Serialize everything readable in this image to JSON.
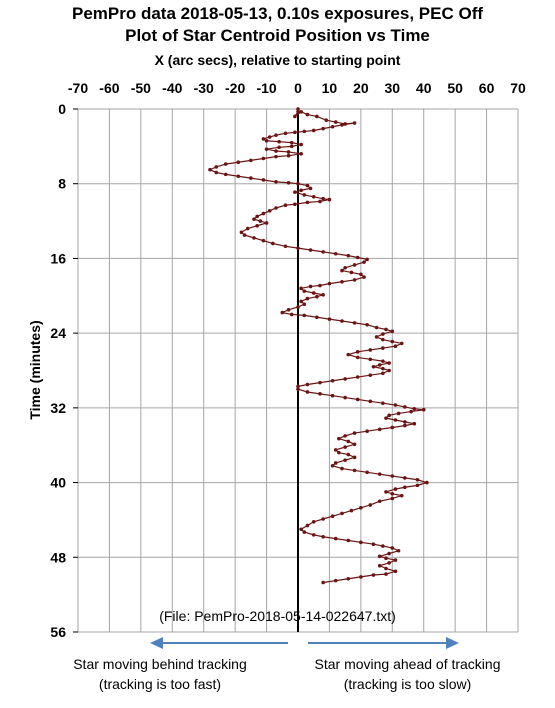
{
  "chart_data": {
    "type": "scatter",
    "title": "PemPro data 2018-05-13, 0.10s exposures, PEC Off",
    "subtitle": "Plot of Star Centroid Position vs Time",
    "xlabel": "X  (arc secs), relative to starting point",
    "ylabel": "Time (minutes)",
    "xlim": [
      -70,
      70
    ],
    "ylim": [
      0,
      56
    ],
    "y_inverted": true,
    "x_ticks": [
      "-70",
      "-60",
      "-50",
      "-40",
      "-30",
      "-20",
      "-10",
      "0",
      "10",
      "20",
      "30",
      "40",
      "50",
      "60",
      "70"
    ],
    "y_ticks": [
      "0",
      "8",
      "16",
      "24",
      "32",
      "40",
      "48",
      "56"
    ],
    "grid": "vertical lines every 10 arc secs, horizontal lines every 8 minutes",
    "series": [
      {
        "color": "#6b1414",
        "points": [
          [
            0,
            0
          ],
          [
            0,
            0.3
          ],
          [
            -1,
            0.8
          ],
          [
            1,
            0.3
          ],
          [
            3,
            0.6
          ],
          [
            6,
            0.8
          ],
          [
            9,
            1.2
          ],
          [
            12,
            1.4
          ],
          [
            15,
            1.6
          ],
          [
            18,
            1.5
          ],
          [
            14,
            1.7
          ],
          [
            11,
            1.9
          ],
          [
            8,
            2.1
          ],
          [
            5,
            2.3
          ],
          [
            2,
            2.4
          ],
          [
            -1,
            2.5
          ],
          [
            -4,
            2.6
          ],
          [
            -7,
            2.8
          ],
          [
            -9,
            3
          ],
          [
            -11,
            3.2
          ],
          [
            -10,
            3.4
          ],
          [
            -6,
            3.5
          ],
          [
            -2,
            3.6
          ],
          [
            1,
            3.8
          ],
          [
            -2,
            4
          ],
          [
            -6,
            4.1
          ],
          [
            -10,
            4.3
          ],
          [
            -7,
            4.5
          ],
          [
            -3,
            4.6
          ],
          [
            1,
            4.8
          ],
          [
            -3,
            5
          ],
          [
            -7,
            5.1
          ],
          [
            -11,
            5.3
          ],
          [
            -15,
            5.5
          ],
          [
            -19,
            5.7
          ],
          [
            -23,
            5.9
          ],
          [
            -26,
            6.2
          ],
          [
            -28,
            6.5
          ],
          [
            -26,
            6.8
          ],
          [
            -23,
            7
          ],
          [
            -19,
            7.2
          ],
          [
            -15,
            7.4
          ],
          [
            -11,
            7.6
          ],
          [
            -7,
            7.8
          ],
          [
            -3,
            7.9
          ],
          [
            0,
            8
          ],
          [
            3,
            8.2
          ],
          [
            4,
            8.5
          ],
          [
            1,
            8.7
          ],
          [
            -1,
            8.9
          ],
          [
            2,
            9.2
          ],
          [
            5,
            9.4
          ],
          [
            8,
            9.6
          ],
          [
            10,
            9.7
          ],
          [
            7,
            9.9
          ],
          [
            3,
            10
          ],
          [
            -1,
            10.2
          ],
          [
            -4,
            10.3
          ],
          [
            -7,
            10.6
          ],
          [
            -9,
            10.9
          ],
          [
            -11,
            11.2
          ],
          [
            -13,
            11.5
          ],
          [
            -14,
            11.8
          ],
          [
            -12,
            12
          ],
          [
            -10,
            12.2
          ],
          [
            -13,
            12.5
          ],
          [
            -16,
            12.8
          ],
          [
            -18,
            13.2
          ],
          [
            -17,
            13.5
          ],
          [
            -14,
            13.8
          ],
          [
            -11,
            14.1
          ],
          [
            -8,
            14.4
          ],
          [
            -4,
            14.7
          ],
          [
            0,
            14.9
          ],
          [
            4,
            15.1
          ],
          [
            8,
            15.3
          ],
          [
            12,
            15.5
          ],
          [
            16,
            15.7
          ],
          [
            19,
            15.9
          ],
          [
            22,
            16.1
          ],
          [
            21,
            16.4
          ],
          [
            18,
            16.7
          ],
          [
            15,
            17
          ],
          [
            14,
            17.3
          ],
          [
            17,
            17.5
          ],
          [
            20,
            17.7
          ],
          [
            21,
            18
          ],
          [
            18,
            18.3
          ],
          [
            14,
            18.5
          ],
          [
            10,
            18.7
          ],
          [
            7,
            18.9
          ],
          [
            4,
            19
          ],
          [
            1,
            19.2
          ],
          [
            2,
            19.5
          ],
          [
            5,
            19.7
          ],
          [
            8,
            19.9
          ],
          [
            6,
            20.1
          ],
          [
            3,
            20.3
          ],
          [
            1,
            20.6
          ],
          [
            2,
            20.9
          ],
          [
            0,
            21.2
          ],
          [
            -3,
            21.5
          ],
          [
            -5,
            21.8
          ],
          [
            -2,
            22
          ],
          [
            2,
            22.1
          ],
          [
            6,
            22.3
          ],
          [
            10,
            22.5
          ],
          [
            14,
            22.7
          ],
          [
            18,
            22.9
          ],
          [
            22,
            23.1
          ],
          [
            25,
            23.4
          ],
          [
            28,
            23.6
          ],
          [
            30,
            23.8
          ],
          [
            27,
            24.1
          ],
          [
            25,
            24.4
          ],
          [
            27,
            24.7
          ],
          [
            30,
            24.9
          ],
          [
            33,
            25.1
          ],
          [
            31,
            25.4
          ],
          [
            27,
            25.6
          ],
          [
            23,
            25.8
          ],
          [
            19,
            26
          ],
          [
            16,
            26.3
          ],
          [
            19,
            26.6
          ],
          [
            23,
            26.8
          ],
          [
            27,
            27
          ],
          [
            29,
            27.2
          ],
          [
            26,
            27.4
          ],
          [
            24,
            27.6
          ],
          [
            27,
            27.8
          ],
          [
            29,
            28
          ],
          [
            27,
            28.3
          ],
          [
            23,
            28.5
          ],
          [
            19,
            28.7
          ],
          [
            15,
            28.9
          ],
          [
            11,
            29.1
          ],
          [
            7,
            29.3
          ],
          [
            3,
            29.5
          ],
          [
            0,
            29.7
          ],
          [
            0,
            30
          ],
          [
            3,
            30.3
          ],
          [
            7,
            30.5
          ],
          [
            11,
            30.7
          ],
          [
            15,
            30.9
          ],
          [
            19,
            31.1
          ],
          [
            23,
            31.3
          ],
          [
            27,
            31.5
          ],
          [
            31,
            31.7
          ],
          [
            34,
            31.9
          ],
          [
            37,
            32.1
          ],
          [
            40,
            32.2
          ],
          [
            36,
            32.4
          ],
          [
            32,
            32.6
          ],
          [
            29,
            32.8
          ],
          [
            28,
            33.1
          ],
          [
            31,
            33.3
          ],
          [
            34,
            33.5
          ],
          [
            37,
            33.7
          ],
          [
            34,
            33.9
          ],
          [
            30,
            34.1
          ],
          [
            26,
            34.3
          ],
          [
            22,
            34.5
          ],
          [
            18,
            34.7
          ],
          [
            15,
            35
          ],
          [
            13,
            35.3
          ],
          [
            16,
            35.6
          ],
          [
            18,
            35.9
          ],
          [
            15,
            36.2
          ],
          [
            12,
            36.5
          ],
          [
            13,
            36.8
          ],
          [
            16,
            37
          ],
          [
            18,
            37.3
          ],
          [
            15,
            37.6
          ],
          [
            12,
            37.9
          ],
          [
            11,
            38.2
          ],
          [
            14,
            38.5
          ],
          [
            18,
            38.7
          ],
          [
            22,
            38.9
          ],
          [
            26,
            39.1
          ],
          [
            30,
            39.3
          ],
          [
            34,
            39.5
          ],
          [
            38,
            39.7
          ],
          [
            41,
            40
          ],
          [
            38,
            40.3
          ],
          [
            34,
            40.5
          ],
          [
            31,
            40.7
          ],
          [
            28,
            41
          ],
          [
            30,
            41.2
          ],
          [
            33,
            41.4
          ],
          [
            30,
            41.7
          ],
          [
            26,
            42
          ],
          [
            23,
            42.4
          ],
          [
            20,
            42.7
          ],
          [
            17,
            43
          ],
          [
            14,
            43.3
          ],
          [
            11,
            43.6
          ],
          [
            8,
            43.9
          ],
          [
            5,
            44.2
          ],
          [
            3,
            44.6
          ],
          [
            1,
            45
          ],
          [
            2,
            45.3
          ],
          [
            5,
            45.6
          ],
          [
            8,
            45.8
          ],
          [
            12,
            46
          ],
          [
            16,
            46.2
          ],
          [
            20,
            46.4
          ],
          [
            24,
            46.6
          ],
          [
            27,
            46.8
          ],
          [
            30,
            47
          ],
          [
            32,
            47.3
          ],
          [
            29,
            47.6
          ],
          [
            26,
            47.9
          ],
          [
            28,
            48.1
          ],
          [
            31,
            48.3
          ],
          [
            29,
            48.6
          ],
          [
            26,
            48.9
          ],
          [
            28,
            49.2
          ],
          [
            31,
            49.5
          ],
          [
            28,
            49.8
          ],
          [
            24,
            49.9
          ],
          [
            20,
            50.1
          ],
          [
            16,
            50.3
          ],
          [
            12,
            50.5
          ],
          [
            8,
            50.7
          ]
        ]
      }
    ]
  },
  "annotations": {
    "file": "(File: PemPro-2018-05-14-022647.txt)",
    "left_caption_line1": "Star moving behind tracking",
    "left_caption_line2": "(tracking is too fast)",
    "right_caption_line1": "Star moving ahead of tracking",
    "right_caption_line2": "(tracking is too slow)"
  },
  "colors": {
    "series": "#6b1414",
    "arrow": "#4f81bd",
    "grid": "#a6a6a6",
    "axis": "#000000"
  }
}
